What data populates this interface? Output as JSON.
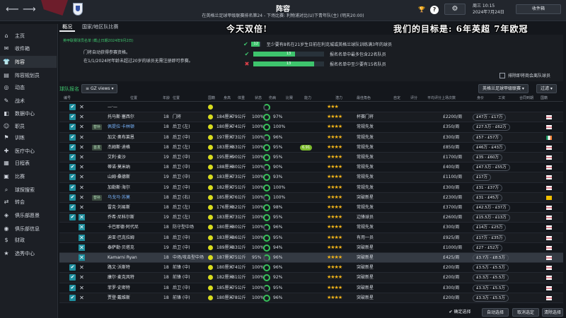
{
  "header": {
    "title": "阵容",
    "subtitle": "在英格兰足球甲级联赛排名第24 - 下场比赛: 利物浦对比(U)下青年队(主) (明天20:00)",
    "day": "周三 10:15",
    "date": "2024年7月24日",
    "inbox_label": "收件箱"
  },
  "sidebar": [
    {
      "label": "主页",
      "icon": "home-icon"
    },
    {
      "label": "收件箱",
      "icon": "inbox-icon"
    },
    {
      "label": "阵容",
      "icon": "squad-icon",
      "active": true
    },
    {
      "label": "阵容规划员",
      "icon": "planner-icon"
    },
    {
      "label": "动态",
      "icon": "dynamics-icon"
    },
    {
      "label": "战术",
      "icon": "tactics-icon"
    },
    {
      "label": "数据中心",
      "icon": "data-icon"
    },
    {
      "label": "职员",
      "icon": "staff-icon"
    },
    {
      "label": "训练",
      "icon": "training-icon"
    },
    {
      "label": "医疗中心",
      "icon": "medical-icon"
    },
    {
      "label": "日程表",
      "icon": "calendar-icon"
    },
    {
      "label": "比赛",
      "icon": "match-icon"
    },
    {
      "label": "球探搜索",
      "icon": "scouting-icon"
    },
    {
      "label": "转会",
      "icon": "transfer-icon"
    },
    {
      "label": "俱乐部愿景",
      "icon": "vision-icon"
    },
    {
      "label": "俱乐部信息",
      "icon": "club-info-icon"
    },
    {
      "label": "财政",
      "icon": "finance-icon"
    },
    {
      "label": "选秀中心",
      "icon": "draft-icon"
    }
  ],
  "tabs": [
    {
      "label": "概况"
    },
    {
      "label": "国家/地区队比赛"
    }
  ],
  "panel": {
    "small_title": "英甲联赛球员名单 (截止日期2024年9月2日)",
    "info1": "门将自动获得参赛资格。",
    "info2": "在1/1/2024时年龄未超过20岁的球员无需注册即可参赛。",
    "requirements": [
      {
        "mark": "✔",
        "value": 12,
        "pct": 0.86,
        "text": "至少要有8名在21岁生日前在利克城或英格兰球队训练满3年的球员"
      },
      {
        "mark": "✔",
        "value": 13,
        "pct": 0.59,
        "text": "报名名单中最多包含22名队员"
      },
      {
        "mark": "✖",
        "value": 13,
        "pct": 0.86,
        "text": "报名名单中至少要有15名队员"
      }
    ],
    "checkbox_label": "排除即将商会离队球员"
  },
  "overlay": {
    "left": "今天双倍!",
    "right": "我们的目标是: 6年英超 7年欧冠"
  },
  "list": {
    "title": "球队报名",
    "views": "GZ views",
    "competition": "英格兰足球甲级联赛",
    "filter": "过滤"
  },
  "columns": [
    "编号",
    "位置",
    "年龄",
    "位置",
    "国籍",
    "身高",
    "体重",
    "状态",
    "伤病",
    "比赛",
    "能力",
    "潜力",
    "最佳角色",
    "自定",
    "评分",
    "平均评分",
    "上场次数",
    "身价",
    "工资",
    "合同到期",
    "国籍"
  ],
  "rows": [
    {
      "on": true,
      "x": false,
      "num": "",
      "name": "—·—",
      "age": "",
      "pos": "",
      "height": "",
      "weight": "",
      "pct": "",
      "lvl": "",
      "stars": "★★★",
      "role": "",
      "money": "",
      "wage": ""
    },
    {
      "on": true,
      "x": false,
      "num": "",
      "name": "托马斯·塞西尔",
      "age": "18",
      "pos": "门将",
      "height": "184厘米",
      "weight": "79公斤",
      "pct": "100%",
      "ring": "97%",
      "pill": "",
      "stars": "★★★★",
      "role": "杯赛门将",
      "wage": "£2200/周",
      "money": "£47万 - £17万",
      "flag": "1"
    },
    {
      "on": true,
      "x": false,
      "tag": "替补",
      "num": "",
      "name": "佩提拉·卡林顿",
      "blue": true,
      "age": "18",
      "pos": "后卫 (左)",
      "height": "180厘米",
      "weight": "74公斤",
      "pct": "100%",
      "ring": "100%",
      "pill": "",
      "stars": "★★★★",
      "role": "常规先发",
      "wage": "£350/周",
      "money": "£27.5万 - £62万",
      "flag": "1"
    },
    {
      "on": true,
      "x": false,
      "num": "",
      "name": "加文·奥布莱恩",
      "age": "18",
      "pos": "后卫 (中)",
      "height": "197厘米",
      "weight": "73公斤",
      "pct": "100%",
      "ring": "96%",
      "pill": "",
      "stars": "★★★★",
      "role": "常规先发",
      "wage": "£300/周",
      "money": "£57 - £57万",
      "flag": "2"
    },
    {
      "on": true,
      "x": false,
      "tag": "首发",
      "num": "",
      "name": "杰姆斯·迪格",
      "age": "18",
      "pos": "后卫 (左)",
      "height": "183厘米",
      "weight": "83公斤",
      "pct": "100%",
      "ring": "95%",
      "pill": "6.91",
      "stars": "★★★★",
      "role": "常规先发",
      "wage": "£850/周",
      "money": "£46万 - £43万",
      "flag": "1"
    },
    {
      "on": true,
      "x": false,
      "num": "",
      "name": "艾利·麦沙",
      "age": "19",
      "pos": "后卫 (中)",
      "height": "195厘米",
      "weight": "90公斤",
      "pct": "100%",
      "ring": "95%",
      "pill": "",
      "stars": "★★★★",
      "role": "常规先发",
      "wage": "£1700/周",
      "money": "£35 - £60万",
      "flag": "1"
    },
    {
      "on": true,
      "x": false,
      "num": "",
      "name": "蒂诺·莫米纳",
      "age": "18",
      "pos": "后卫 (中)",
      "height": "188厘米",
      "weight": "80公斤",
      "pct": "100%",
      "ring": "90%",
      "pill": "",
      "stars": "★★★★",
      "role": "常规先发",
      "wage": "£400/周",
      "money": "£47.5万 - £55万",
      "flag": "1"
    },
    {
      "on": true,
      "x": false,
      "num": "",
      "name": "山姆·桑德斯",
      "age": "19",
      "pos": "后卫 (中)",
      "height": "183厘米",
      "weight": "73公斤",
      "pct": "100%",
      "ring": "93%",
      "pill": "",
      "stars": "★★★★",
      "role": "常规先发",
      "wage": "£1100/周",
      "money": "£17万",
      "flag": "1"
    },
    {
      "on": true,
      "x": false,
      "num": "",
      "name": "加勒斯·海尔",
      "age": "19",
      "pos": "后卫 (中)",
      "height": "182厘米",
      "weight": "75公斤",
      "pct": "100%",
      "ring": "100%",
      "pill": "",
      "stars": "★★★★",
      "role": "常规先发",
      "wage": "£300/周",
      "money": "£31 - £37万",
      "flag": "1"
    },
    {
      "on": true,
      "x": false,
      "tag": "替补",
      "num": "",
      "name": "乌戈马·苏莫",
      "blue": true,
      "age": "18",
      "pos": "后卫 (右)",
      "height": "185厘米",
      "weight": "76公斤",
      "pct": "100%",
      "ring": "100%",
      "pill": "",
      "stars": "★★★★",
      "role": "突破新星",
      "wage": "£2300/周",
      "money": "£31 - £45万",
      "flag": "3"
    },
    {
      "on": true,
      "x": false,
      "num": "",
      "name": "雷克·刘易斯",
      "age": "18",
      "pos": "后卫 (左)",
      "height": "176厘米",
      "weight": "82公斤",
      "pct": "100%",
      "ring": "98%",
      "pill": "",
      "stars": "★★★★",
      "role": "常规先发",
      "wage": "£3700/周",
      "money": "£42.5万 - £37万",
      "flag": "1"
    },
    {
      "on": true,
      "x": true,
      "num": "",
      "name": "乔希·尼科尔斯",
      "age": "19",
      "pos": "后卫 (左)",
      "height": "183厘米",
      "weight": "73公斤",
      "pct": "100%",
      "ring": "95%",
      "pill": "",
      "stars": "★★★★",
      "role": "边锋球员",
      "wage": "£2600/周",
      "money": "£15.5万 - £13万",
      "flag": "1"
    },
    {
      "on": false,
      "x": true,
      "num": "",
      "name": "卡巴耶德·阿代尼",
      "age": "18",
      "pos": "防守型中场",
      "height": "180厘米",
      "weight": "80公斤",
      "pct": "100%",
      "ring": "96%",
      "pill": "",
      "stars": "★★★★",
      "role": "常规先发",
      "wage": "£300/周",
      "money": "£14万 - £25万",
      "flag": "1"
    },
    {
      "on": false,
      "x": true,
      "num": "",
      "name": "迪亚·巴克拉姆",
      "age": "18",
      "pos": "后卫 (中)",
      "height": "183厘米",
      "weight": "86公斤",
      "pct": "100%",
      "ring": "95%",
      "pill": "",
      "stars": "★★★★",
      "role": "有用一员",
      "wage": "£925/周",
      "money": "£17万 - £35万",
      "flag": "1"
    },
    {
      "on": false,
      "x": true,
      "num": "",
      "name": "泰萨勒·贝塔克",
      "age": "19",
      "pos": "后卫 (中)",
      "height": "189厘米",
      "weight": "83公斤",
      "pct": "100%",
      "ring": "94%",
      "pill": "",
      "stars": "★★★★",
      "role": "突破新星",
      "wage": "£1000/周",
      "money": "£27 - £52万",
      "flag": "1"
    },
    {
      "on": false,
      "x": true,
      "num": "",
      "name": "Kamarni Ryan",
      "hl": true,
      "age": "18",
      "pos": "中场/攻击型中场",
      "height": "187厘米",
      "weight": "75公斤",
      "pct": "95%",
      "ring": "96%",
      "pill": "",
      "stars": "★★★★",
      "role": "突破新星",
      "wage": "£425/周",
      "money": "£3.7万 - £8.5万",
      "flag": "1"
    },
    {
      "on": true,
      "x": false,
      "num": "",
      "name": "路文·沃斯特",
      "age": "18",
      "pos": "前锋 (中)",
      "height": "180厘米",
      "weight": "74公斤",
      "pct": "100%",
      "ring": "96%",
      "pill": "",
      "stars": "★★★★",
      "role": "突破新星",
      "wage": "£200/周",
      "money": "£3.5万 - £5.5万",
      "flag": "1"
    },
    {
      "on": true,
      "x": false,
      "num": "",
      "name": "康尔·麦克风特",
      "age": "18",
      "pos": "前锋 (中)",
      "height": "182厘米",
      "weight": "81公斤",
      "pct": "100%",
      "ring": "92%",
      "pill": "",
      "stars": "★★★★",
      "role": "突破新星",
      "wage": "£200/周",
      "money": "£3.3万 - £5.5万",
      "flag": "1"
    },
    {
      "on": true,
      "x": false,
      "num": "",
      "name": "菲罗·史密特",
      "age": "18",
      "pos": "后卫 (中)",
      "height": "185厘米",
      "weight": "75公斤",
      "pct": "100%",
      "ring": "95%",
      "pill": "",
      "stars": "★★★★",
      "role": "突破新星",
      "wage": "£300/周",
      "money": "£3.3万 - £5.5万",
      "flag": "1"
    },
    {
      "on": true,
      "x": false,
      "num": "",
      "name": "贾登·戴维斯",
      "age": "18",
      "pos": "前锋 (中)",
      "height": "180厘米",
      "weight": "78公斤",
      "pct": "100%",
      "ring": "96%",
      "pill": "",
      "stars": "★★★★",
      "role": "突破新星",
      "wage": "£200/周",
      "money": "£3.3万 - £5.5万",
      "flag": "1"
    }
  ],
  "footer": {
    "confirm": "确定选择",
    "auto": "自动选择",
    "cancel": "取消选定",
    "clear": "清除选择"
  }
}
